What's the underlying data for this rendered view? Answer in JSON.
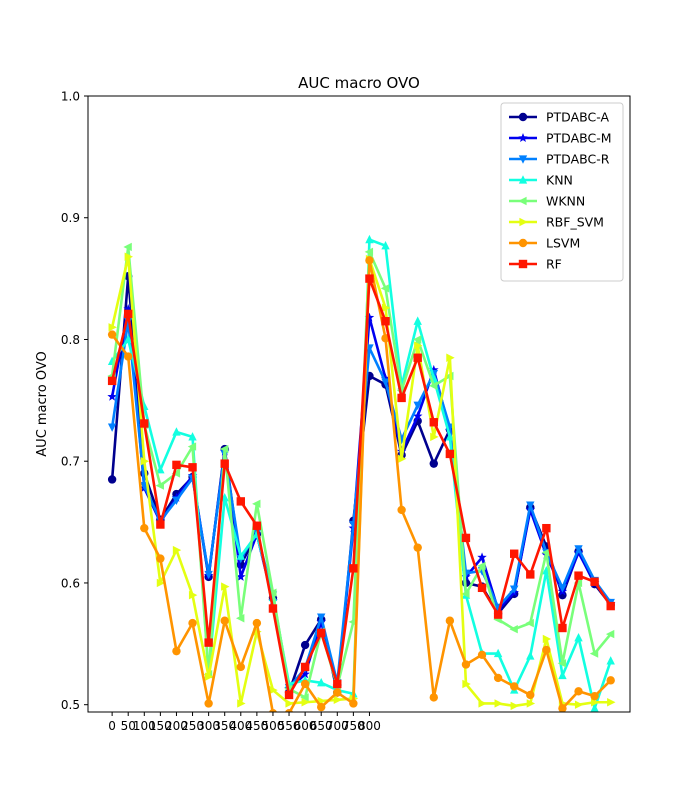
{
  "chart_data": {
    "type": "line",
    "title": "AUC macro OVO",
    "ylabel": "AUC macro OVO",
    "xlabel": "",
    "ylim": [
      0.494,
      1.0
    ],
    "yticks": [
      0.5,
      0.6,
      0.7,
      0.8,
      0.9,
      1.0
    ],
    "ytick_labels": [
      "0.5",
      "0.6",
      "0.7",
      "0.8",
      "0.9",
      "1.0"
    ],
    "xticks": [
      0,
      50,
      100,
      150,
      200,
      250,
      300,
      350,
      400,
      450,
      500,
      550,
      600,
      650,
      700,
      750,
      800
    ],
    "xtick_labels": [
      "0",
      "50",
      "100",
      "150",
      "200",
      "250",
      "300",
      "350",
      "400",
      "450",
      "500",
      "550",
      "600",
      "650",
      "700",
      "750",
      "800"
    ],
    "xlim": [
      -75,
      1610
    ],
    "grid": false,
    "legend_position": "top-right",
    "x": [
      0,
      50,
      100,
      150,
      200,
      250,
      300,
      350,
      400,
      450,
      500,
      550,
      600,
      650,
      700,
      750,
      800,
      850,
      900,
      950,
      1000,
      1050,
      1100,
      1150,
      1200,
      1250,
      1300,
      1350,
      1400,
      1450,
      1500,
      1550
    ],
    "series": [
      {
        "name": "PTDABC-A",
        "color": "#00008f",
        "marker": "circle",
        "values": [
          0.685,
          0.852,
          0.69,
          0.652,
          0.673,
          0.687,
          0.605,
          0.71,
          0.615,
          0.64,
          0.588,
          0.51,
          0.549,
          0.57,
          0.51,
          0.651,
          0.77,
          0.763,
          0.705,
          0.733,
          0.698,
          0.726,
          0.6,
          0.597,
          0.575,
          0.591,
          0.662,
          0.63,
          0.59,
          0.626,
          0.599,
          0.582
        ]
      },
      {
        "name": "PTDABC-M",
        "color": "#0000f0",
        "marker": "star",
        "values": [
          0.753,
          0.825,
          0.678,
          0.65,
          0.67,
          0.688,
          0.606,
          0.708,
          0.605,
          0.64,
          0.585,
          0.513,
          0.525,
          0.568,
          0.515,
          0.645,
          0.818,
          0.768,
          0.708,
          0.737,
          0.775,
          0.725,
          0.605,
          0.621,
          0.578,
          0.592,
          0.66,
          0.623,
          0.593,
          0.625,
          0.6,
          0.583
        ]
      },
      {
        "name": "PTDABC-R",
        "color": "#0080ff",
        "marker": "triangle-down",
        "values": [
          0.728,
          0.815,
          0.68,
          0.651,
          0.668,
          0.686,
          0.607,
          0.706,
          0.62,
          0.641,
          0.59,
          0.514,
          0.53,
          0.572,
          0.518,
          0.648,
          0.793,
          0.765,
          0.718,
          0.746,
          0.772,
          0.728,
          0.608,
          0.61,
          0.58,
          0.595,
          0.664,
          0.625,
          0.596,
          0.628,
          0.602,
          0.584
        ]
      },
      {
        "name": "KNN",
        "color": "#12ffe1",
        "marker": "triangle-up",
        "values": [
          0.782,
          0.8,
          0.745,
          0.693,
          0.724,
          0.72,
          0.525,
          0.67,
          0.622,
          0.64,
          0.588,
          0.517,
          0.52,
          0.518,
          0.512,
          0.509,
          0.882,
          0.877,
          0.762,
          0.815,
          0.768,
          0.72,
          0.59,
          0.542,
          0.542,
          0.512,
          0.54,
          0.61,
          0.524,
          0.555,
          0.497,
          0.536
        ]
      },
      {
        "name": "WKNN",
        "color": "#79ff7a",
        "marker": "triangle-left",
        "values": [
          0.77,
          0.876,
          0.73,
          0.68,
          0.69,
          0.712,
          0.525,
          0.71,
          0.571,
          0.665,
          0.592,
          0.513,
          0.506,
          0.56,
          0.515,
          0.568,
          0.872,
          0.842,
          0.758,
          0.8,
          0.762,
          0.77,
          0.591,
          0.614,
          0.57,
          0.562,
          0.567,
          0.625,
          0.534,
          0.6,
          0.542,
          0.558
        ]
      },
      {
        "name": "RBF_SVM",
        "color": "#e4ff12",
        "marker": "triangle-right",
        "values": [
          0.81,
          0.868,
          0.7,
          0.6,
          0.627,
          0.59,
          0.523,
          0.597,
          0.501,
          0.56,
          0.512,
          0.501,
          0.502,
          0.503,
          0.504,
          0.505,
          0.866,
          0.826,
          0.702,
          0.795,
          0.72,
          0.785,
          0.517,
          0.501,
          0.501,
          0.499,
          0.501,
          0.554,
          0.501,
          0.5,
          0.502,
          0.502
        ]
      },
      {
        "name": "LSVM",
        "color": "#ff9400",
        "marker": "circle",
        "values": [
          0.804,
          0.786,
          0.645,
          0.62,
          0.544,
          0.567,
          0.501,
          0.569,
          0.531,
          0.567,
          0.493,
          0.493,
          0.517,
          0.498,
          0.51,
          0.501,
          0.865,
          0.801,
          0.66,
          0.629,
          0.506,
          0.569,
          0.533,
          0.541,
          0.522,
          0.515,
          0.508,
          0.545,
          0.497,
          0.511,
          0.507,
          0.52
        ]
      },
      {
        "name": "RF",
        "color": "#ff1600",
        "marker": "square",
        "values": [
          0.766,
          0.821,
          0.731,
          0.648,
          0.697,
          0.695,
          0.551,
          0.698,
          0.667,
          0.647,
          0.579,
          0.508,
          0.531,
          0.559,
          0.517,
          0.612,
          0.85,
          0.815,
          0.752,
          0.785,
          0.732,
          0.706,
          0.637,
          0.596,
          0.574,
          0.624,
          0.607,
          0.645,
          0.563,
          0.606,
          0.601,
          0.581
        ]
      }
    ]
  }
}
